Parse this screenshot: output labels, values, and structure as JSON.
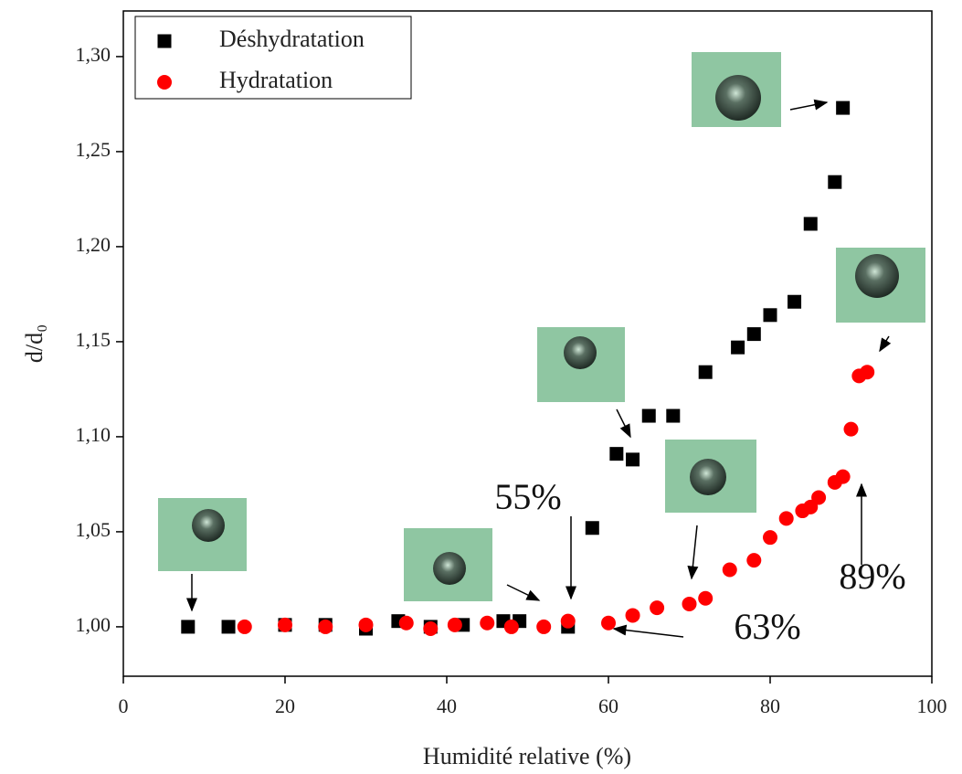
{
  "chart_data": {
    "type": "scatter",
    "x_label": "Humidité relative (%)",
    "y_label": "d/d₀",
    "xlim": [
      0,
      100
    ],
    "xticks": [
      0,
      20,
      40,
      60,
      80,
      100
    ],
    "ylim": [
      0.974,
      1.324
    ],
    "yticks": [
      {
        "value": 1.0,
        "label": "1,00"
      },
      {
        "value": 1.05,
        "label": "1,05"
      },
      {
        "value": 1.1,
        "label": "1,10"
      },
      {
        "value": 1.15,
        "label": "1,15"
      },
      {
        "value": 1.2,
        "label": "1,20"
      },
      {
        "value": 1.25,
        "label": "1,25"
      },
      {
        "value": 1.3,
        "label": "1,30"
      }
    ],
    "legend": "upper left",
    "series": [
      {
        "name": "Déshydratation",
        "color": "#000000",
        "marker": "square",
        "x": [
          8,
          13,
          20,
          25,
          30,
          34,
          38,
          42,
          47,
          49,
          55,
          58,
          61,
          63,
          65,
          68,
          72,
          76,
          78,
          80,
          83,
          85,
          88,
          89
        ],
        "values": [
          1.0,
          1.0,
          1.001,
          1.001,
          0.999,
          1.003,
          1.0,
          1.001,
          1.003,
          1.003,
          1.0,
          1.052,
          1.091,
          1.088,
          1.111,
          1.111,
          1.134,
          1.147,
          1.154,
          1.164,
          1.171,
          1.212,
          1.234,
          1.273
        ]
      },
      {
        "name": "Hydratation",
        "color": "#ff0000",
        "marker": "circle",
        "x": [
          15,
          20,
          25,
          30,
          35,
          38,
          41,
          45,
          48,
          52,
          55,
          60,
          63,
          66,
          70,
          72,
          75,
          78,
          80,
          82,
          84,
          85,
          86,
          88,
          89,
          90,
          91,
          92
        ],
        "values": [
          1.0,
          1.001,
          1.0,
          1.001,
          1.002,
          0.999,
          1.001,
          1.002,
          1.0,
          1.0,
          1.003,
          1.002,
          1.006,
          1.01,
          1.012,
          1.015,
          1.03,
          1.035,
          1.047,
          1.057,
          1.061,
          1.063,
          1.068,
          1.076,
          1.079,
          1.104,
          1.132,
          1.134
        ]
      }
    ],
    "annotations": [
      "55%",
      "63%",
      "89%"
    ]
  }
}
